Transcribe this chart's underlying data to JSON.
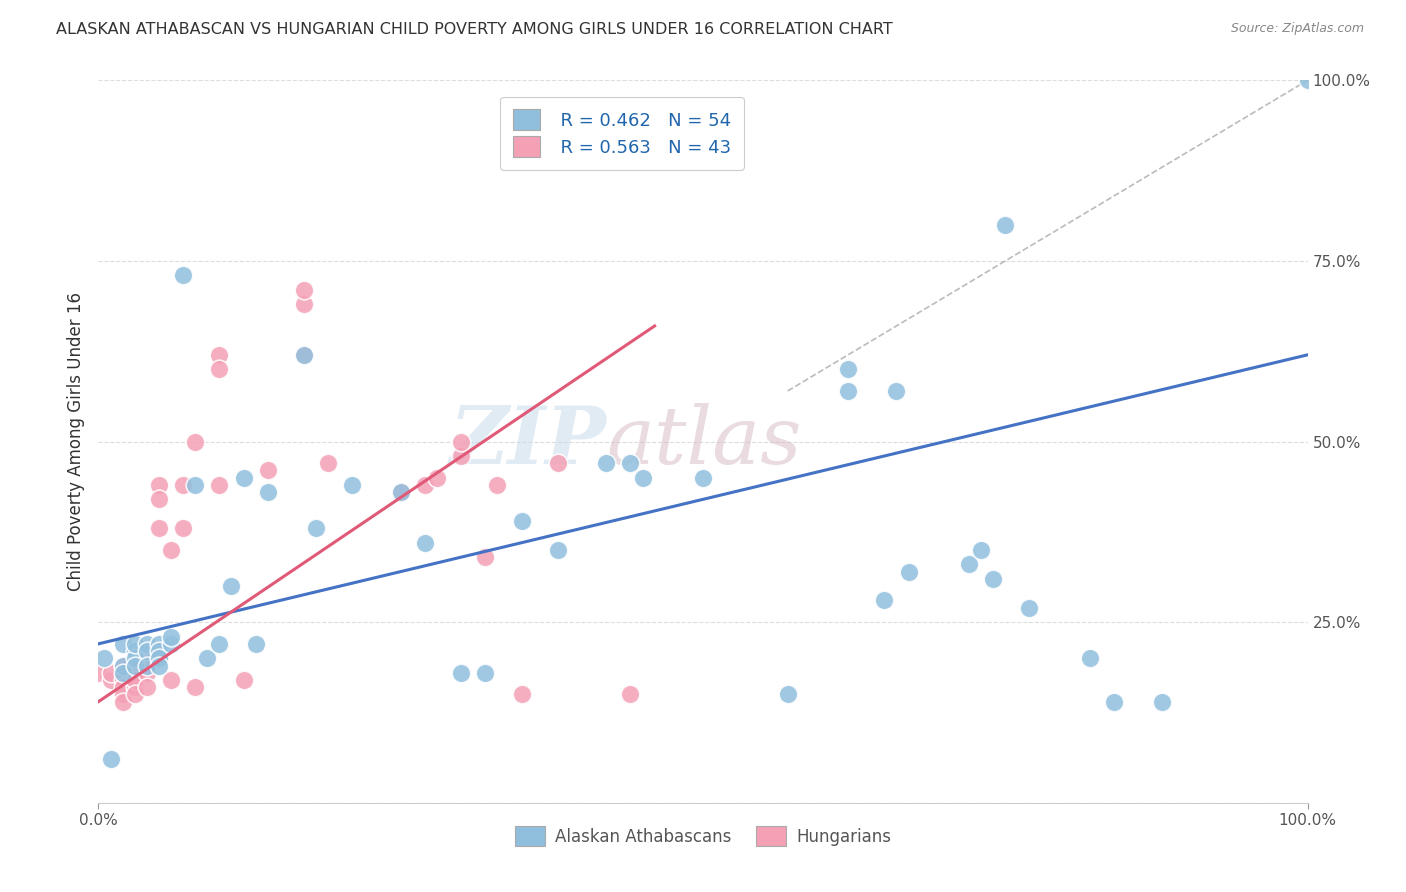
{
  "title": "ALASKAN ATHABASCAN VS HUNGARIAN CHILD POVERTY AMONG GIRLS UNDER 16 CORRELATION CHART",
  "source": "Source: ZipAtlas.com",
  "ylabel": "Child Poverty Among Girls Under 16",
  "xlim": [
    0.0,
    1.0
  ],
  "ylim": [
    0.0,
    1.0
  ],
  "blue_color": "#90bfdd",
  "pink_color": "#f4a0b5",
  "blue_line_color": "#4472c4",
  "pink_line_color": "#e05a78",
  "legend_blue_R": "R = 0.462",
  "legend_blue_N": "N = 54",
  "legend_pink_R": "R = 0.563",
  "legend_pink_N": "N = 43",
  "blue_points_x": [
    0.005,
    0.01,
    0.02,
    0.02,
    0.02,
    0.03,
    0.03,
    0.03,
    0.03,
    0.04,
    0.04,
    0.04,
    0.05,
    0.05,
    0.05,
    0.05,
    0.06,
    0.06,
    0.07,
    0.08,
    0.09,
    0.1,
    0.11,
    0.12,
    0.13,
    0.14,
    0.17,
    0.18,
    0.21,
    0.25,
    0.27,
    0.3,
    0.32,
    0.35,
    0.38,
    0.42,
    0.44,
    0.45,
    0.5,
    0.57,
    0.62,
    0.62,
    0.65,
    0.66,
    0.67,
    0.72,
    0.73,
    0.74,
    0.75,
    0.77,
    0.82,
    0.84,
    0.88,
    1.0
  ],
  "blue_points_y": [
    0.2,
    0.06,
    0.19,
    0.22,
    0.18,
    0.21,
    0.2,
    0.22,
    0.19,
    0.22,
    0.21,
    0.19,
    0.22,
    0.21,
    0.2,
    0.19,
    0.22,
    0.23,
    0.73,
    0.44,
    0.2,
    0.22,
    0.3,
    0.45,
    0.22,
    0.43,
    0.62,
    0.38,
    0.44,
    0.43,
    0.36,
    0.18,
    0.18,
    0.39,
    0.35,
    0.47,
    0.47,
    0.45,
    0.45,
    0.15,
    0.57,
    0.6,
    0.28,
    0.57,
    0.32,
    0.33,
    0.35,
    0.31,
    0.8,
    0.27,
    0.2,
    0.14,
    0.14,
    1.0
  ],
  "pink_points_x": [
    0.0,
    0.01,
    0.01,
    0.02,
    0.02,
    0.02,
    0.02,
    0.02,
    0.03,
    0.03,
    0.03,
    0.03,
    0.04,
    0.04,
    0.04,
    0.05,
    0.05,
    0.05,
    0.06,
    0.06,
    0.07,
    0.07,
    0.08,
    0.08,
    0.1,
    0.1,
    0.1,
    0.12,
    0.14,
    0.17,
    0.17,
    0.17,
    0.19,
    0.25,
    0.27,
    0.28,
    0.3,
    0.3,
    0.32,
    0.33,
    0.35,
    0.38,
    0.44
  ],
  "pink_points_y": [
    0.18,
    0.17,
    0.18,
    0.19,
    0.17,
    0.16,
    0.15,
    0.14,
    0.19,
    0.16,
    0.17,
    0.15,
    0.18,
    0.2,
    0.16,
    0.44,
    0.42,
    0.38,
    0.35,
    0.17,
    0.44,
    0.38,
    0.5,
    0.16,
    0.62,
    0.6,
    0.44,
    0.17,
    0.46,
    0.69,
    0.71,
    0.62,
    0.47,
    0.43,
    0.44,
    0.45,
    0.48,
    0.5,
    0.34,
    0.44,
    0.15,
    0.47,
    0.15
  ],
  "blue_line_x": [
    0.0,
    1.0
  ],
  "blue_line_y": [
    0.22,
    0.62
  ],
  "pink_line_x": [
    0.0,
    0.46
  ],
  "pink_line_y": [
    0.14,
    0.66
  ],
  "watermark_line1": "ZIP",
  "watermark_line2": "atlas",
  "diagonal_line_x": [
    0.57,
    1.0
  ],
  "diagonal_line_y": [
    0.57,
    1.0
  ]
}
